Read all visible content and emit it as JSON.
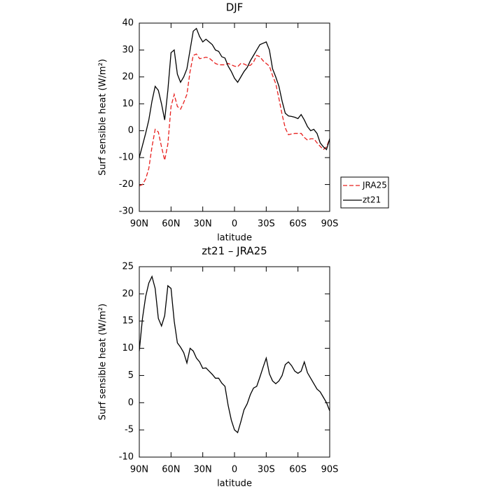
{
  "chart_data": [
    {
      "type": "line",
      "title": "DJF",
      "xlabel": "latitude",
      "ylabel": "Surf sensible heat (W/m²)",
      "x": [
        90,
        87,
        84,
        81,
        78,
        75,
        72,
        69,
        66,
        63,
        60,
        57,
        54,
        51,
        48,
        45,
        42,
        39,
        36,
        33,
        30,
        27,
        24,
        21,
        18,
        15,
        12,
        9,
        6,
        3,
        0,
        -3,
        -6,
        -9,
        -12,
        -15,
        -18,
        -21,
        -24,
        -27,
        -30,
        -33,
        -36,
        -39,
        -42,
        -45,
        -48,
        -51,
        -54,
        -57,
        -60,
        -63,
        -66,
        -69,
        -72,
        -75,
        -78,
        -81,
        -84,
        -87,
        -90
      ],
      "series": [
        {
          "name": "JRA25",
          "color": "#e8201e",
          "dashed": true,
          "values": [
            -20.5,
            -20,
            -18,
            -14,
            -6,
            0.5,
            -0.5,
            -6,
            -11,
            -5,
            9,
            13.5,
            9,
            8,
            10.5,
            13.5,
            22,
            28,
            28.5,
            26.8,
            27,
            27.3,
            27,
            26,
            25,
            24.5,
            24.5,
            24.5,
            25,
            24.5,
            24,
            23.8,
            25,
            24.8,
            24.2,
            24.3,
            25.5,
            28,
            27.5,
            26,
            25,
            24,
            20.5,
            17.5,
            12,
            6,
            1,
            -1.5,
            -1.2,
            -1,
            -1,
            -1,
            -2.5,
            -3.5,
            -3,
            -3,
            -4.5,
            -5.8,
            -7,
            -6,
            -3
          ]
        },
        {
          "name": "zt21",
          "color": "#000000",
          "dashed": false,
          "values": [
            -10,
            -5.5,
            -1,
            4,
            11,
            16.5,
            15,
            10,
            4,
            15,
            29,
            30,
            21,
            18,
            20,
            23,
            30,
            37,
            38,
            35,
            33,
            34,
            33,
            32,
            30,
            29.5,
            27.5,
            27,
            24,
            22,
            19.5,
            18,
            20,
            22,
            23.5,
            26,
            28,
            30,
            32,
            32.5,
            33,
            30,
            23,
            20,
            16.5,
            11,
            6.5,
            5.5,
            5.3,
            5,
            4.5,
            6,
            4,
            1.5,
            0,
            0.5,
            -1,
            -4.5,
            -6,
            -7,
            -3
          ]
        }
      ],
      "xlim": [
        90,
        -90
      ],
      "xticks": [
        {
          "value": 90,
          "label": "90N"
        },
        {
          "value": 60,
          "label": "60N"
        },
        {
          "value": 30,
          "label": "30N"
        },
        0,
        {
          "value": -30,
          "label": "30S"
        },
        {
          "value": -60,
          "label": "60S"
        },
        {
          "value": -90,
          "label": "90S"
        }
      ],
      "ylim": [
        -30,
        40
      ],
      "yticks": [
        -30,
        -20,
        -10,
        0,
        10,
        20,
        30,
        40
      ],
      "legend": "right"
    },
    {
      "type": "line",
      "title": "zt21 – JRA25",
      "xlabel": "latitude",
      "ylabel": "Surf sensible heat (W/m²)",
      "x": [
        90,
        87,
        84,
        81,
        78,
        75,
        72,
        69,
        66,
        63,
        60,
        57,
        54,
        51,
        48,
        45,
        42,
        39,
        36,
        33,
        30,
        27,
        24,
        21,
        18,
        15,
        12,
        9,
        6,
        3,
        0,
        -3,
        -6,
        -9,
        -12,
        -15,
        -18,
        -21,
        -24,
        -27,
        -30,
        -33,
        -36,
        -39,
        -42,
        -45,
        -48,
        -51,
        -54,
        -57,
        -60,
        -63,
        -66,
        -69,
        -72,
        -75,
        -78,
        -81,
        -84,
        -87,
        -90
      ],
      "series": [
        {
          "color": "#000000",
          "dashed": false,
          "values": [
            9.5,
            15.5,
            19.5,
            22,
            23.2,
            21,
            15.5,
            14.1,
            16,
            21.5,
            21,
            15,
            11,
            10.2,
            9.2,
            7.3,
            10,
            9.5,
            8.2,
            7.5,
            6.3,
            6.4,
            5.8,
            5.2,
            4.5,
            4.5,
            3.6,
            3,
            -0.5,
            -3.2,
            -5,
            -5.5,
            -3.5,
            -1.3,
            -0.2,
            1.5,
            2.7,
            3,
            4.7,
            6.5,
            8.2,
            5.3,
            4,
            3.5,
            4,
            5,
            7,
            7.5,
            6.8,
            5.8,
            5.4,
            5.8,
            7.5,
            5.5,
            4.5,
            3.5,
            2.5,
            2,
            1,
            0,
            -1.5
          ]
        }
      ],
      "xlim": [
        90,
        -90
      ],
      "xticks": [
        {
          "value": 90,
          "label": "90N"
        },
        {
          "value": 60,
          "label": "60N"
        },
        {
          "value": 30,
          "label": "30N"
        },
        0,
        {
          "value": -30,
          "label": "30S"
        },
        {
          "value": -60,
          "label": "60S"
        },
        {
          "value": -90,
          "label": "90S"
        }
      ],
      "ylim": [
        -10,
        25
      ],
      "yticks": [
        -10,
        -5,
        0,
        5,
        10,
        15,
        20,
        25
      ]
    }
  ]
}
